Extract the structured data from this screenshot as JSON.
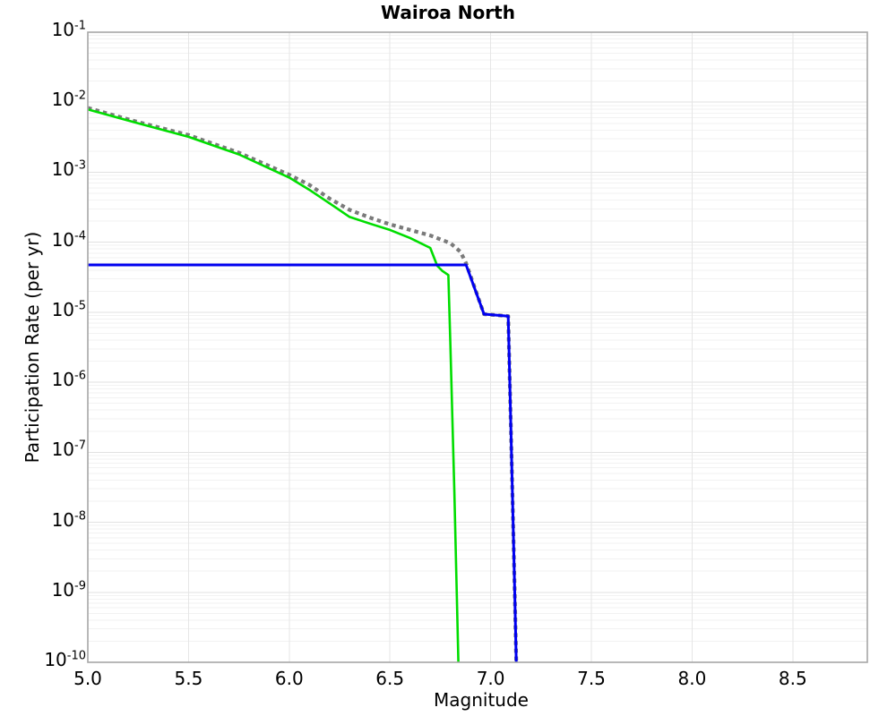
{
  "chart_data": {
    "type": "line",
    "title": "Wairoa North",
    "xlabel": "Magnitude",
    "ylabel": "Participation Rate (per yr)",
    "xlim": [
      5.0,
      8.87
    ],
    "ylim": [
      1e-10,
      0.1
    ],
    "ylim_exponents": [
      -1,
      -10
    ],
    "yscale": "log",
    "grid": true,
    "legend": null,
    "xticks": [
      {
        "value": 5.0,
        "label": "5.0"
      },
      {
        "value": 5.5,
        "label": "5.5"
      },
      {
        "value": 6.0,
        "label": "6.0"
      },
      {
        "value": 6.5,
        "label": "6.5"
      },
      {
        "value": 7.0,
        "label": "7.0"
      },
      {
        "value": 7.5,
        "label": "7.5"
      },
      {
        "value": 8.0,
        "label": "8.0"
      },
      {
        "value": 8.5,
        "label": "8.5"
      }
    ],
    "yticks": [
      {
        "exponent": -1,
        "base": "10",
        "sup": "-1"
      },
      {
        "exponent": -2,
        "base": "10",
        "sup": "-2"
      },
      {
        "exponent": -3,
        "base": "10",
        "sup": "-3"
      },
      {
        "exponent": -4,
        "base": "10",
        "sup": "-4"
      },
      {
        "exponent": -5,
        "base": "10",
        "sup": "-5"
      },
      {
        "exponent": -6,
        "base": "10",
        "sup": "-6"
      },
      {
        "exponent": -7,
        "base": "10",
        "sup": "-7"
      },
      {
        "exponent": -8,
        "base": "10",
        "sup": "-8"
      },
      {
        "exponent": -9,
        "base": "10",
        "sup": "-9"
      },
      {
        "exponent": -10,
        "base": "10",
        "sup": "-10"
      }
    ],
    "colors": {
      "background": "#ffffff",
      "plot_border": "#a6a6a6",
      "grid_major": "#e2e2e2",
      "grid_minor": "#f2f2f2",
      "grid_vertical": "#e6e6e6",
      "gray_curve": "#7a7a7a",
      "green_curve": "#00dd00",
      "blue_curve": "#0000f0"
    },
    "series": [
      {
        "id": "gray-dotted-curve",
        "color": "#7a7a7a",
        "style": "dotted",
        "width": 4.2,
        "dash": "4.5 4.2",
        "points": [
          [
            5.0,
            0.0083
          ],
          [
            5.25,
            0.0052
          ],
          [
            5.5,
            0.0034
          ],
          [
            5.75,
            0.0019
          ],
          [
            6.0,
            0.00092
          ],
          [
            6.1,
            0.00066
          ],
          [
            6.2,
            0.00042
          ],
          [
            6.3,
            0.00029
          ],
          [
            6.4,
            0.000225
          ],
          [
            6.5,
            0.00018
          ],
          [
            6.6,
            0.00015
          ],
          [
            6.7,
            0.000125
          ],
          [
            6.8,
            9.7e-05
          ],
          [
            6.85,
            7.3e-05
          ],
          [
            6.878,
            5e-05
          ],
          [
            6.89,
            4e-05
          ],
          [
            6.967,
            9.4e-06
          ],
          [
            7.087,
            8.8e-06
          ],
          [
            7.1,
            2.5e-07
          ],
          [
            7.12,
            8.5e-10
          ],
          [
            7.127,
            1e-10
          ]
        ]
      },
      {
        "id": "green-solid-curve",
        "color": "#00dd00",
        "style": "solid",
        "width": 2.6,
        "dash": null,
        "points": [
          [
            5.0,
            0.0079
          ],
          [
            5.25,
            0.005
          ],
          [
            5.5,
            0.0032
          ],
          [
            5.75,
            0.0018
          ],
          [
            6.0,
            0.00084
          ],
          [
            6.1,
            0.00056
          ],
          [
            6.2,
            0.00036
          ],
          [
            6.3,
            0.00023
          ],
          [
            6.4,
            0.000185
          ],
          [
            6.5,
            0.00015
          ],
          [
            6.6,
            0.000115
          ],
          [
            6.7,
            8.3e-05
          ],
          [
            6.735,
            4.6e-05
          ],
          [
            6.76,
            3.9e-05
          ],
          [
            6.79,
            3.4e-05
          ],
          [
            6.8,
            3.3e-06
          ],
          [
            6.82,
            2.7e-08
          ],
          [
            6.84,
            1e-10
          ]
        ]
      },
      {
        "id": "blue-solid-curve",
        "color": "#0000f0",
        "style": "solid",
        "width": 3,
        "dash": null,
        "points": [
          [
            5.0,
            4.75e-05
          ],
          [
            6.878,
            4.75e-05
          ],
          [
            6.967,
            9.4e-06
          ],
          [
            7.087,
            8.8e-06
          ],
          [
            7.1,
            2.5e-07
          ],
          [
            7.12,
            8.5e-10
          ],
          [
            7.127,
            1e-10
          ]
        ]
      }
    ]
  }
}
